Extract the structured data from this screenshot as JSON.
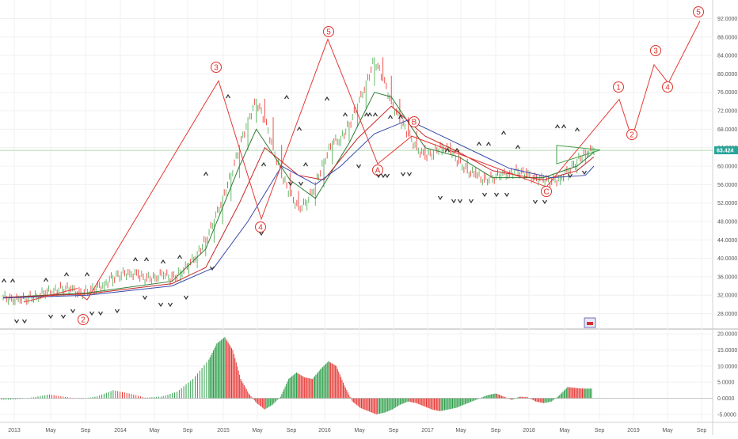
{
  "chart_data": [
    {
      "type": "candlestick",
      "title": "",
      "x_ticks": [
        "2013",
        "May",
        "Sep",
        "2014",
        "May",
        "Sep",
        "2015",
        "May",
        "Sep",
        "2016",
        "May",
        "Sep",
        "2017",
        "May",
        "Sep",
        "2018",
        "May",
        "Sep",
        "2019",
        "May",
        "Sep"
      ],
      "y_ticks": [
        "28.0000",
        "32.0000",
        "36.0000",
        "40.0000",
        "44.0000",
        "48.0000",
        "52.0000",
        "56.0000",
        "60.0000",
        "64.0000",
        "68.0000",
        "72.0000",
        "76.0000",
        "80.0000",
        "84.0000",
        "88.0000",
        "92.0000"
      ],
      "ylim": [
        25.0,
        95.0
      ],
      "current_price": "63.424",
      "price_series": [
        [
          0,
          31.5
        ],
        [
          5,
          31.2
        ],
        [
          10,
          30.8
        ],
        [
          15,
          31.5
        ],
        [
          20,
          31.8
        ],
        [
          25,
          32.5
        ],
        [
          30,
          33.0
        ],
        [
          35,
          33.5
        ],
        [
          40,
          33.2
        ],
        [
          45,
          32.5
        ],
        [
          50,
          32.8
        ],
        [
          55,
          33.5
        ],
        [
          60,
          34.5
        ],
        [
          65,
          35.8
        ],
        [
          70,
          36.5
        ],
        [
          75,
          37.0
        ],
        [
          80,
          36.2
        ],
        [
          85,
          35.5
        ],
        [
          90,
          36.0
        ],
        [
          95,
          36.5
        ],
        [
          100,
          35.5
        ],
        [
          105,
          37.0
        ],
        [
          110,
          38.5
        ],
        [
          115,
          41.0
        ],
        [
          120,
          44.0
        ],
        [
          125,
          48.0
        ],
        [
          130,
          53.0
        ],
        [
          135,
          58.0
        ],
        [
          140,
          64.0
        ],
        [
          145,
          70.0
        ],
        [
          150,
          74.0
        ],
        [
          155,
          70.0
        ],
        [
          160,
          64.0
        ],
        [
          165,
          58.0
        ],
        [
          170,
          54.0
        ],
        [
          175,
          51.0
        ],
        [
          180,
          52.0
        ],
        [
          185,
          56.0
        ],
        [
          190,
          61.0
        ],
        [
          195,
          65.0
        ],
        [
          200,
          66.0
        ],
        [
          205,
          69.0
        ],
        [
          210,
          73.0
        ],
        [
          215,
          78.0
        ],
        [
          220,
          83.0
        ],
        [
          225,
          79.0
        ],
        [
          230,
          74.0
        ],
        [
          235,
          70.0
        ],
        [
          240,
          67.0
        ],
        [
          245,
          64.0
        ],
        [
          250,
          62.0
        ],
        [
          255,
          63.0
        ],
        [
          260,
          64.5
        ],
        [
          265,
          63.0
        ],
        [
          270,
          61.0
        ],
        [
          275,
          59.0
        ],
        [
          280,
          58.0
        ],
        [
          285,
          57.0
        ],
        [
          290,
          57.5
        ],
        [
          295,
          58.0
        ],
        [
          300,
          58.5
        ],
        [
          305,
          59.0
        ],
        [
          310,
          58.0
        ],
        [
          315,
          57.5
        ],
        [
          320,
          57.0
        ],
        [
          325,
          56.5
        ],
        [
          330,
          57.5
        ],
        [
          335,
          59.0
        ],
        [
          340,
          61.0
        ],
        [
          345,
          63.0
        ],
        [
          350,
          63.4
        ]
      ],
      "moving_averages": [
        {
          "color": "#2e7d32",
          "points": [
            [
              0,
              31.5
            ],
            [
              50,
              32.5
            ],
            [
              100,
              35.0
            ],
            [
              120,
              42.0
            ],
            [
              140,
              60.0
            ],
            [
              150,
              68.0
            ],
            [
              170,
              57.0
            ],
            [
              185,
              53.0
            ],
            [
              205,
              65.0
            ],
            [
              220,
              76.0
            ],
            [
              230,
              75.0
            ],
            [
              250,
              64.0
            ],
            [
              270,
              62.0
            ],
            [
              290,
              57.5
            ],
            [
              320,
              57.5
            ],
            [
              340,
              60.0
            ],
            [
              350,
              63.0
            ]
          ]
        },
        {
          "color": "#c62828",
          "points": [
            [
              0,
              31.5
            ],
            [
              50,
              32.3
            ],
            [
              100,
              34.5
            ],
            [
              120,
              38.0
            ],
            [
              140,
              52.0
            ],
            [
              155,
              64.0
            ],
            [
              175,
              58.0
            ],
            [
              190,
              57.0
            ],
            [
              210,
              66.0
            ],
            [
              230,
              73.0
            ],
            [
              250,
              66.5
            ],
            [
              270,
              63.0
            ],
            [
              290,
              59.0
            ],
            [
              320,
              57.0
            ],
            [
              340,
              59.0
            ],
            [
              350,
              62.0
            ]
          ]
        },
        {
          "color": "#3949ab",
          "points": [
            [
              0,
              31.4
            ],
            [
              50,
              32.0
            ],
            [
              100,
              34.0
            ],
            [
              125,
              38.0
            ],
            [
              145,
              48.0
            ],
            [
              165,
              60.0
            ],
            [
              185,
              56.0
            ],
            [
              200,
              60.0
            ],
            [
              220,
              67.0
            ],
            [
              240,
              70.0
            ],
            [
              260,
              66.5
            ],
            [
              280,
              63.0
            ],
            [
              300,
              59.5
            ],
            [
              325,
              57.5
            ],
            [
              345,
              58.0
            ],
            [
              350,
              60.0
            ]
          ]
        }
      ],
      "elliott_wave_labels": [
        "2",
        "3",
        "4",
        "5",
        "A",
        "B",
        "C",
        "1",
        "2",
        "3",
        "4",
        "5"
      ],
      "elliott_wave_path_prices": [
        32.5,
        31.0,
        78.5,
        48.5,
        87.5,
        60.5,
        66.5,
        55.5,
        74.5,
        66.0,
        82.0,
        78.0,
        91.5
      ],
      "signal_markers_count": 60
    },
    {
      "type": "bar",
      "title": "",
      "y_ticks": [
        "20.0000",
        "15.0000",
        "10.0000",
        "5.0000",
        "0.0000",
        "-5.0000"
      ],
      "ylim": [
        -7.0,
        21.0
      ],
      "histogram_series": [
        [
          0,
          -0.5
        ],
        [
          20,
          -0.3
        ],
        [
          40,
          0.3
        ],
        [
          60,
          1.2
        ],
        [
          80,
          0.4
        ],
        [
          100,
          -0.2
        ],
        [
          120,
          0.6
        ],
        [
          140,
          2.5
        ],
        [
          160,
          1.5
        ],
        [
          180,
          0.2
        ],
        [
          200,
          0.5
        ],
        [
          220,
          2.0
        ],
        [
          240,
          6.0
        ],
        [
          260,
          12.0
        ],
        [
          270,
          17.0
        ],
        [
          280,
          19.0
        ],
        [
          290,
          15.0
        ],
        [
          300,
          6.0
        ],
        [
          310,
          1.5
        ],
        [
          320,
          -1.5
        ],
        [
          330,
          -3.5
        ],
        [
          340,
          -2.0
        ],
        [
          350,
          0.5
        ],
        [
          360,
          6.0
        ],
        [
          370,
          8.0
        ],
        [
          380,
          6.5
        ],
        [
          390,
          6.0
        ],
        [
          400,
          9.0
        ],
        [
          410,
          11.5
        ],
        [
          420,
          10.0
        ],
        [
          430,
          4.0
        ],
        [
          440,
          -1.0
        ],
        [
          450,
          -3.0
        ],
        [
          460,
          -4.0
        ],
        [
          470,
          -5.0
        ],
        [
          480,
          -4.5
        ],
        [
          490,
          -3.5
        ],
        [
          500,
          -2.0
        ],
        [
          510,
          -1.0
        ],
        [
          520,
          -1.5
        ],
        [
          530,
          -2.5
        ],
        [
          540,
          -3.5
        ],
        [
          550,
          -4.0
        ],
        [
          560,
          -3.5
        ],
        [
          570,
          -3.0
        ],
        [
          580,
          -2.0
        ],
        [
          590,
          -1.0
        ],
        [
          600,
          0.0
        ],
        [
          610,
          1.0
        ],
        [
          620,
          1.5
        ],
        [
          630,
          0.5
        ],
        [
          640,
          -0.5
        ],
        [
          650,
          0.5
        ],
        [
          660,
          0.3
        ],
        [
          670,
          -1.0
        ],
        [
          680,
          -1.5
        ],
        [
          690,
          -1.0
        ],
        [
          700,
          1.0
        ],
        [
          710,
          3.5
        ],
        [
          720,
          3.2
        ],
        [
          730,
          3.0
        ],
        [
          740,
          3.0
        ]
      ]
    }
  ]
}
